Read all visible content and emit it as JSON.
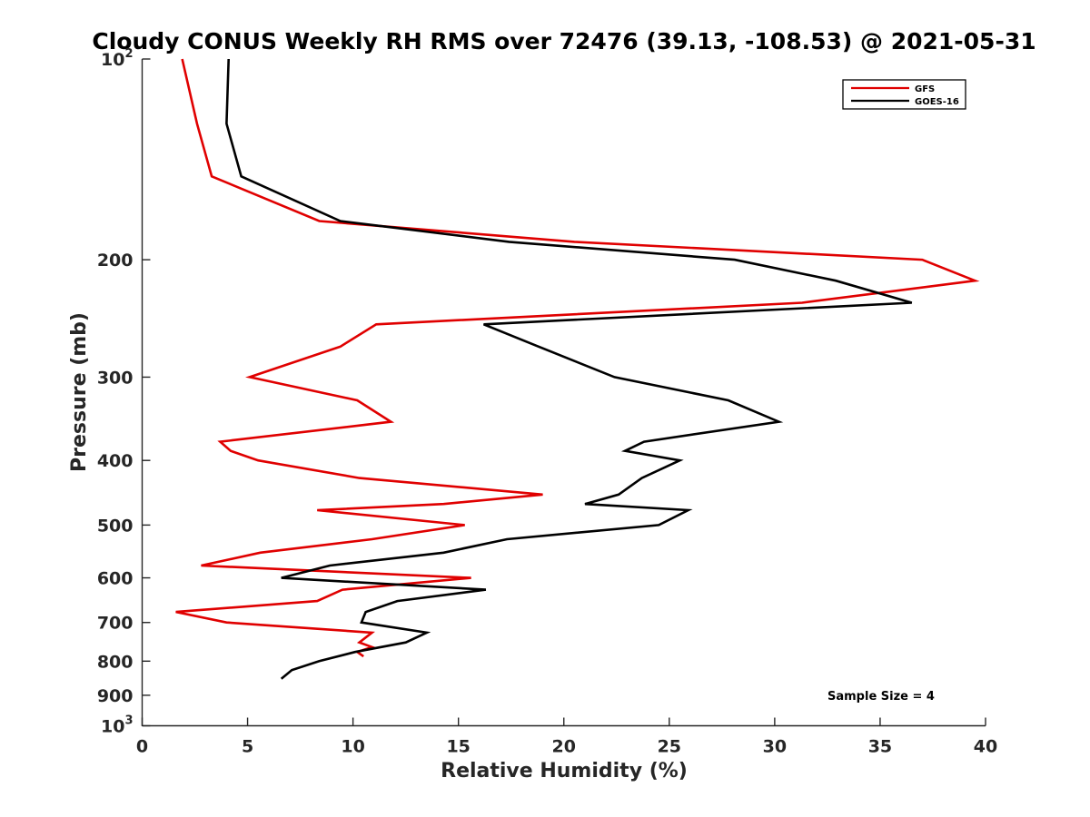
{
  "chart_data": {
    "type": "line",
    "title": "Cloudy CONUS Weekly RH RMS over 72476 (39.13, -108.53) @ 2021-05-31",
    "xlabel": "Relative Humidity (%)",
    "ylabel": "Pressure (mb)",
    "xlim": [
      0,
      40
    ],
    "ylim": [
      100,
      1000
    ],
    "y_scale": "log",
    "y_reversed": true,
    "x_ticks": [
      "0",
      "5",
      "10",
      "15",
      "20",
      "25",
      "30",
      "35",
      "40"
    ],
    "y_ticks": [
      {
        "value": 100,
        "base": "10",
        "exp": "2"
      },
      {
        "value": 200,
        "label": "200"
      },
      {
        "value": 300,
        "label": "300"
      },
      {
        "value": 400,
        "label": "400"
      },
      {
        "value": 500,
        "label": "500"
      },
      {
        "value": 600,
        "label": "600"
      },
      {
        "value": 700,
        "label": "700"
      },
      {
        "value": 800,
        "label": "800"
      },
      {
        "value": 900,
        "label": "900"
      },
      {
        "value": 1000,
        "base": "10",
        "exp": "3"
      }
    ],
    "grid": false,
    "legend_position": "top-right",
    "annotation": "Sample Size = 4",
    "series": [
      {
        "name": "GFS",
        "color": "#e00000",
        "points": [
          [
            1.9,
            100
          ],
          [
            2.6,
            125
          ],
          [
            3.3,
            150
          ],
          [
            8.4,
            175
          ],
          [
            20.5,
            188
          ],
          [
            37.0,
            200
          ],
          [
            39.5,
            215
          ],
          [
            31.3,
            232
          ],
          [
            11.1,
            250
          ],
          [
            9.4,
            270
          ],
          [
            5.1,
            300
          ],
          [
            10.2,
            325
          ],
          [
            11.8,
            350
          ],
          [
            3.7,
            375
          ],
          [
            4.2,
            387
          ],
          [
            5.5,
            400
          ],
          [
            10.3,
            425
          ],
          [
            19.0,
            450
          ],
          [
            14.3,
            465
          ],
          [
            8.3,
            475
          ],
          [
            15.3,
            500
          ],
          [
            10.9,
            525
          ],
          [
            5.6,
            550
          ],
          [
            2.8,
            575
          ],
          [
            15.6,
            600
          ],
          [
            9.5,
            625
          ],
          [
            8.3,
            650
          ],
          [
            1.6,
            675
          ],
          [
            4.0,
            700
          ],
          [
            10.9,
            725
          ],
          [
            10.3,
            750
          ],
          [
            10.9,
            762
          ],
          [
            10.2,
            775
          ],
          [
            10.5,
            787
          ]
        ]
      },
      {
        "name": "GOES-16",
        "color": "#000000",
        "points": [
          [
            4.1,
            100
          ],
          [
            4.0,
            125
          ],
          [
            4.7,
            150
          ],
          [
            9.4,
            175
          ],
          [
            17.4,
            188
          ],
          [
            28.1,
            200
          ],
          [
            32.9,
            215
          ],
          [
            36.5,
            232
          ],
          [
            16.2,
            250
          ],
          [
            18.8,
            270
          ],
          [
            22.4,
            300
          ],
          [
            27.8,
            325
          ],
          [
            30.2,
            350
          ],
          [
            23.8,
            375
          ],
          [
            22.9,
            387
          ],
          [
            25.5,
            400
          ],
          [
            23.7,
            425
          ],
          [
            22.6,
            450
          ],
          [
            21.0,
            465
          ],
          [
            25.9,
            475
          ],
          [
            24.5,
            500
          ],
          [
            17.3,
            525
          ],
          [
            14.3,
            550
          ],
          [
            8.9,
            575
          ],
          [
            6.6,
            600
          ],
          [
            16.3,
            625
          ],
          [
            12.1,
            650
          ],
          [
            10.6,
            675
          ],
          [
            10.4,
            700
          ],
          [
            13.5,
            725
          ],
          [
            12.5,
            750
          ],
          [
            10.1,
            775
          ],
          [
            8.4,
            800
          ],
          [
            7.1,
            825
          ],
          [
            6.6,
            850
          ]
        ]
      }
    ]
  }
}
